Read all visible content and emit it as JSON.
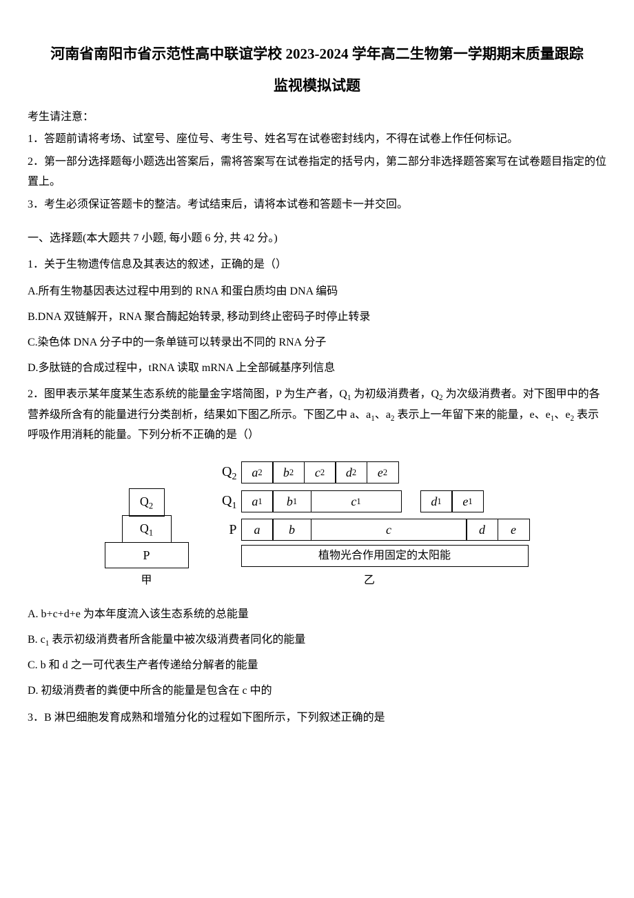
{
  "title_line1": "河南省南阳市省示范性高中联谊学校 2023-2024 学年高二生物第一学期期末质量跟踪",
  "title_line2": "监视模拟试题",
  "notice_head": "考生请注意：",
  "notice_1": "1．答题前请将考场、试室号、座位号、考生号、姓名写在试卷密封线内，不得在试卷上作任何标记。",
  "notice_2": "2．第一部分选择题每小题选出答案后，需将答案写在试卷指定的括号内，第二部分非选择题答案写在试卷题目指定的位置上。",
  "notice_3": "3．考生必须保证答题卡的整洁。考试结束后，请将本试卷和答题卡一并交回。",
  "section1": "一、选择题(本大题共 7 小题, 每小题 6 分, 共 42 分。)",
  "q1": {
    "stem": "1．关于生物遗传信息及其表达的叙述，正确的是（）",
    "A": "A.所有生物基因表达过程中用到的 RNA 和蛋白质均由 DNA 编码",
    "B": "B.DNA 双链解开，RNA 聚合酶起始转录, 移动到终止密码子时停止转录",
    "C": "C.染色体 DNA 分子中的一条单链可以转录出不同的 RNA 分子",
    "D": "D.多肽链的合成过程中，tRNA 读取 mRNA 上全部碱基序列信息"
  },
  "q2": {
    "stem_a": "2．图甲表示某年度某生态系统的能量金字塔简图，P 为生产者，Q",
    "stem_b": " 为初级消费者，Q",
    "stem_c": " 为次级消费者。对下图甲中的各营养级所含有的能量进行分类剖析，结果如下图乙所示。下图乙中 a、a",
    "stem_d": "、a",
    "stem_e": " 表示上一年留下来的能量，e、e",
    "stem_f": "、e",
    "stem_g": " 表示呼吸作用消耗的能量。下列分析不正确的是（）",
    "A": "A. b+c+d+e 为本年度流入该生态系统的总能量",
    "B_a": "B. c",
    "B_b": " 表示初级消费者所含能量中被次级消费者同化的能量",
    "C": "C. b 和 d 之一可代表生产者传递给分解者的能量",
    "D": "D. 初级消费者的粪便中所含的能量是包含在 c 中的"
  },
  "q3": {
    "stem": "3．B 淋巴细胞发育成熟和增殖分化的过程如下图所示，下列叙述正确的是"
  },
  "diagram": {
    "pyramid": {
      "q2": "Q",
      "q2_sub": "2",
      "q1": "Q",
      "q1_sub": "1",
      "p": "P",
      "label": "甲"
    },
    "bars": {
      "row_q2": {
        "label": "Q",
        "label_sub": "2",
        "cells": [
          "a",
          "b",
          "c",
          "d",
          "e"
        ],
        "subs": [
          "2",
          "2",
          "2",
          "2",
          "2"
        ],
        "widths": [
          45,
          45,
          45,
          45,
          45
        ]
      },
      "row_q1": {
        "label": "Q",
        "label_sub": "1",
        "cells": [
          "a",
          "b",
          "c",
          "d",
          "e"
        ],
        "subs": [
          "1",
          "1",
          "1",
          "1",
          "1"
        ],
        "widths": [
          45,
          55,
          130,
          45,
          45
        ],
        "gap_after": 2
      },
      "row_p": {
        "label": "P",
        "cells": [
          "a",
          "b",
          "c",
          "d",
          "e"
        ],
        "widths": [
          45,
          55,
          225,
          45,
          45
        ]
      },
      "caption": "植物光合作用固定的太阳能",
      "caption_width": 415,
      "label": "乙"
    }
  }
}
